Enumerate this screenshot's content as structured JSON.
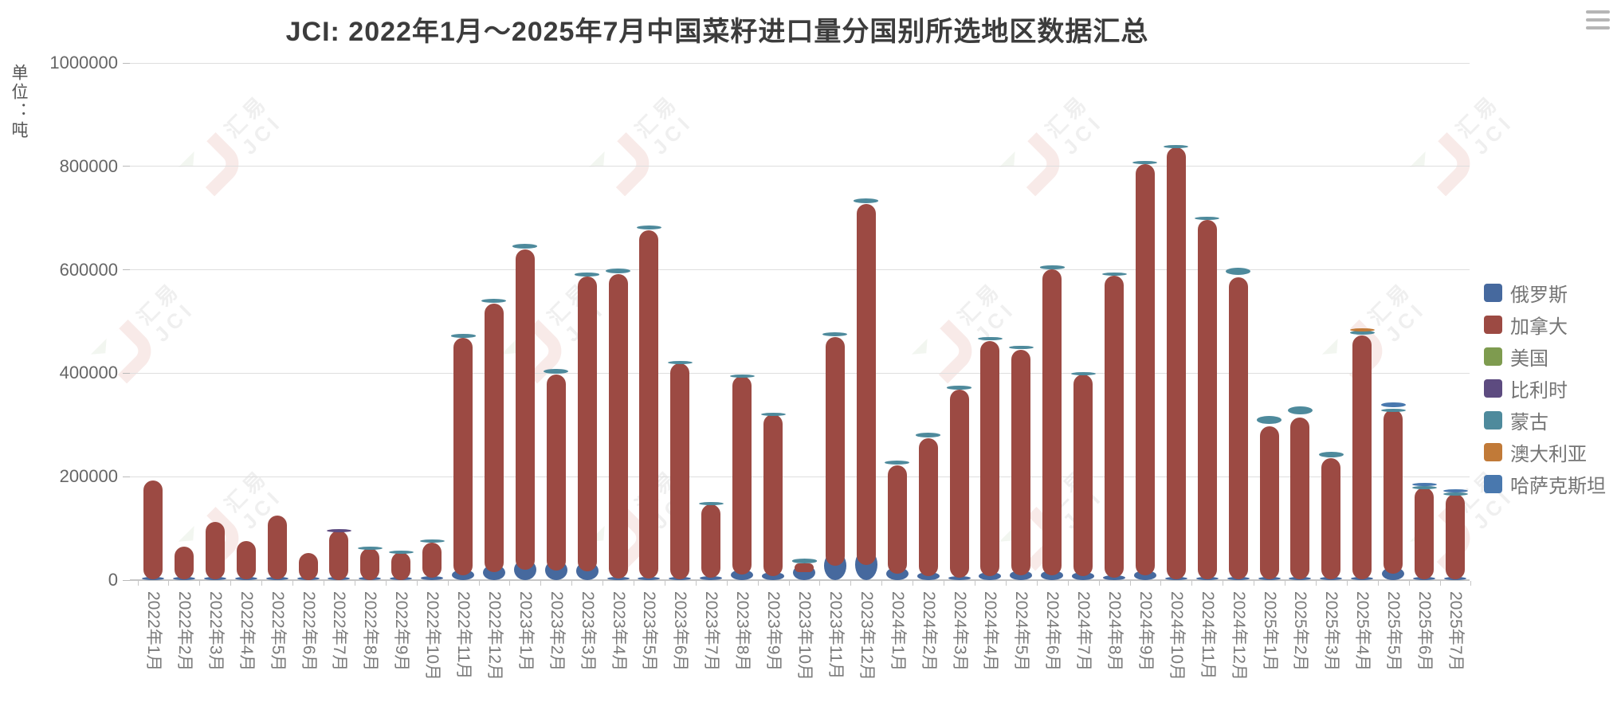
{
  "header": {
    "title": "JCI: 2022年1月～2025年7月中国菜籽进口量分国别所选地区数据汇总",
    "menu_icon": "hamburger-menu"
  },
  "y_axis": {
    "unit_label": "单位：吨",
    "tick_values": [
      0,
      200000,
      400000,
      600000,
      800000,
      1000000
    ],
    "tick_labels": [
      "0",
      "200000",
      "400000",
      "600000",
      "800000",
      "1000000"
    ]
  },
  "watermark": {
    "line1": "汇易",
    "line2": "JCI"
  },
  "legend": {
    "position": "right",
    "items": [
      {
        "label": "俄罗斯",
        "color": "#46699E"
      },
      {
        "label": "加拿大",
        "color": "#9C4A43"
      },
      {
        "label": "美国",
        "color": "#7E9B4F"
      },
      {
        "label": "比利时",
        "color": "#5D4B80"
      },
      {
        "label": "蒙古",
        "color": "#4E8A9C"
      },
      {
        "label": "澳大利亚",
        "color": "#C17A38"
      },
      {
        "label": "哈萨克斯坦",
        "color": "#4978AE"
      }
    ]
  },
  "chart_data": {
    "type": "bar",
    "stacked": true,
    "title": "JCI: 2022年1月～2025年7月中国菜籽进口量分国别所选地区数据汇总",
    "ylabel": "单位：吨",
    "xlabel": "",
    "ylim": [
      0,
      1000000
    ],
    "grid": true,
    "legend_position": "right",
    "categories": [
      "2022年1月",
      "2022年2月",
      "2022年3月",
      "2022年4月",
      "2022年5月",
      "2022年6月",
      "2022年7月",
      "2022年8月",
      "2022年9月",
      "2022年10月",
      "2022年11月",
      "2022年12月",
      "2023年1月",
      "2023年2月",
      "2023年3月",
      "2023年4月",
      "2023年5月",
      "2023年6月",
      "2023年7月",
      "2023年8月",
      "2023年9月",
      "2023年10月",
      "2023年11月",
      "2023年12月",
      "2024年1月",
      "2024年2月",
      "2024年3月",
      "2024年4月",
      "2024年5月",
      "2024年6月",
      "2024年7月",
      "2024年8月",
      "2024年9月",
      "2024年10月",
      "2024年11月",
      "2024年12月",
      "2025年1月",
      "2025年2月",
      "2025年3月",
      "2025年4月",
      "2025年5月",
      "2025年6月",
      "2025年7月"
    ],
    "series": [
      {
        "name": "俄罗斯",
        "color": "#46699E",
        "values": [
          2000,
          2000,
          2000,
          2000,
          2000,
          1000,
          1000,
          1000,
          1000,
          8000,
          20000,
          30000,
          40000,
          38000,
          35000,
          6000,
          5000,
          3000,
          8000,
          20000,
          15000,
          30000,
          55000,
          60000,
          25000,
          15000,
          8000,
          15000,
          18000,
          18000,
          15000,
          10000,
          18000,
          4000,
          3000,
          3000,
          2000,
          3000,
          3000,
          3000,
          25000,
          2000,
          2000
        ]
      },
      {
        "name": "加拿大",
        "color": "#9C4A43",
        "values": [
          190000,
          62000,
          110000,
          73000,
          123000,
          52000,
          94000,
          61000,
          53000,
          65000,
          448000,
          505000,
          600000,
          359000,
          552000,
          585000,
          672000,
          416000,
          139000,
          374000,
          305000,
          2000,
          415000,
          668000,
          197000,
          260000,
          360000,
          448000,
          428000,
          583000,
          382000,
          579000,
          786000,
          832000,
          694000,
          583000,
          296000,
          312000,
          232000,
          470000,
          304000,
          176000,
          164000
        ]
      },
      {
        "name": "美国",
        "color": "#7E9B4F",
        "values": [
          0,
          0,
          0,
          0,
          0,
          0,
          0,
          0,
          0,
          0,
          0,
          0,
          0,
          0,
          0,
          0,
          0,
          0,
          0,
          0,
          0,
          0,
          0,
          0,
          0,
          0,
          0,
          0,
          0,
          0,
          0,
          0,
          0,
          0,
          0,
          0,
          0,
          0,
          0,
          0,
          0,
          0,
          0
        ]
      },
      {
        "name": "比利时",
        "color": "#5D4B80",
        "values": [
          0,
          0,
          0,
          0,
          0,
          0,
          4000,
          0,
          0,
          0,
          0,
          0,
          0,
          0,
          0,
          0,
          0,
          0,
          0,
          0,
          0,
          0,
          0,
          0,
          0,
          0,
          0,
          0,
          0,
          0,
          0,
          0,
          0,
          0,
          0,
          0,
          0,
          0,
          0,
          0,
          0,
          0,
          0
        ]
      },
      {
        "name": "蒙古",
        "color": "#4E8A9C",
        "values": [
          0,
          0,
          0,
          0,
          0,
          0,
          0,
          3000,
          3000,
          5000,
          7000,
          8000,
          9000,
          10000,
          7000,
          10000,
          8000,
          5000,
          4000,
          4000,
          4000,
          8000,
          8000,
          9000,
          8000,
          9000,
          7000,
          7000,
          7000,
          7000,
          5000,
          5000,
          6000,
          6000,
          6000,
          14000,
          15000,
          16000,
          11000,
          8000,
          3000,
          4000,
          4000
        ]
      },
      {
        "name": "澳大利亚",
        "color": "#C17A38",
        "values": [
          0,
          0,
          0,
          0,
          0,
          0,
          0,
          0,
          0,
          0,
          0,
          0,
          0,
          0,
          0,
          0,
          0,
          0,
          0,
          0,
          0,
          0,
          0,
          0,
          0,
          0,
          0,
          0,
          0,
          0,
          0,
          0,
          0,
          0,
          0,
          0,
          0,
          0,
          0,
          6000,
          0,
          0,
          0
        ]
      },
      {
        "name": "哈萨克斯坦",
        "color": "#4978AE",
        "values": [
          0,
          0,
          0,
          0,
          0,
          0,
          0,
          0,
          0,
          0,
          0,
          0,
          0,
          0,
          0,
          0,
          0,
          0,
          0,
          0,
          0,
          0,
          0,
          0,
          0,
          0,
          0,
          0,
          0,
          0,
          0,
          0,
          0,
          0,
          0,
          0,
          0,
          0,
          0,
          0,
          10000,
          6000,
          6000
        ]
      }
    ]
  }
}
